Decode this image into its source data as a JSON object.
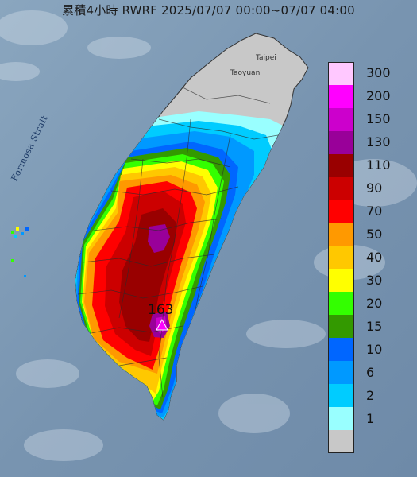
{
  "title": "累積4小時 RWRF 2025/07/07 00:00~07/07 04:00",
  "map_labels": {
    "strait": "Formosa Strait",
    "taipei": "Taipei",
    "taoyuan": "Taoyuan"
  },
  "peak": {
    "value": "163",
    "marker_color": "#ff00ff"
  },
  "legend": [
    {
      "label": "300",
      "color": "#ffc8ff"
    },
    {
      "label": "200",
      "color": "#ff00ff"
    },
    {
      "label": "150",
      "color": "#cc00cc"
    },
    {
      "label": "130",
      "color": "#990099"
    },
    {
      "label": "110",
      "color": "#990000"
    },
    {
      "label": "90",
      "color": "#cc0000"
    },
    {
      "label": "70",
      "color": "#ff0000"
    },
    {
      "label": "50",
      "color": "#ff9900"
    },
    {
      "label": "40",
      "color": "#ffc800"
    },
    {
      "label": "30",
      "color": "#ffff00"
    },
    {
      "label": "20",
      "color": "#33ff00"
    },
    {
      "label": "15",
      "color": "#339900"
    },
    {
      "label": "10",
      "color": "#0066ff"
    },
    {
      "label": "6",
      "color": "#0099ff"
    },
    {
      "label": "2",
      "color": "#00ccff"
    },
    {
      "label": "1",
      "color": "#99ffff"
    },
    {
      "label": "",
      "color": "#c8c8c8"
    }
  ],
  "colors": {
    "sea": "#7f9bb6",
    "no_rain_land": "#c8c8c8"
  }
}
